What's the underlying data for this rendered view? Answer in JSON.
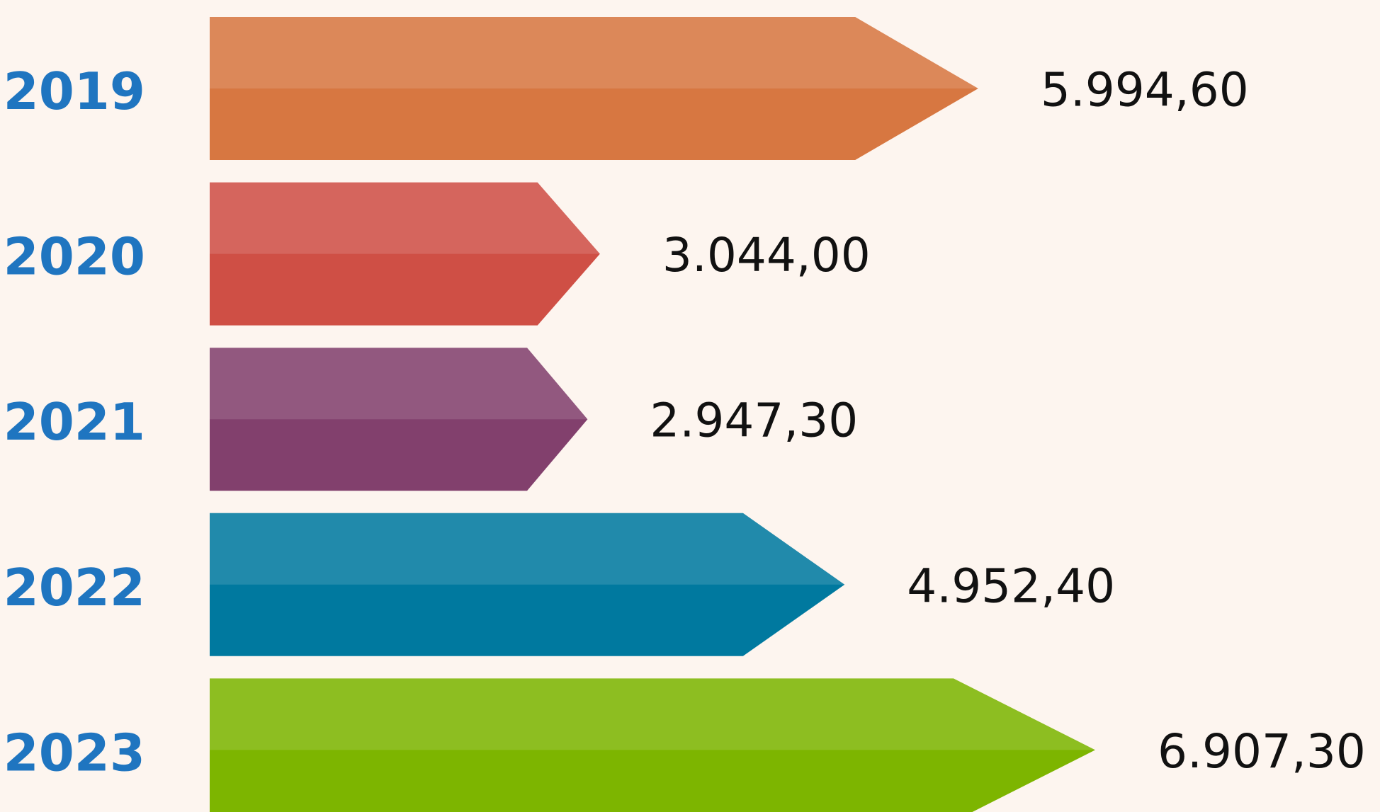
{
  "chart_data": {
    "type": "bar",
    "orientation": "horizontal",
    "categories": [
      "2019",
      "2020",
      "2021",
      "2022",
      "2023"
    ],
    "values": [
      5994.6,
      3044.0,
      2947.3,
      4952.4,
      6907.3
    ],
    "value_labels": [
      "5.994,60",
      "3.044,00",
      "2.947,30",
      "4.952,40",
      "6.907,30"
    ],
    "colors": [
      "#d77741",
      "#cf4f45",
      "#82406d",
      "#00799f",
      "#7db500"
    ]
  }
}
